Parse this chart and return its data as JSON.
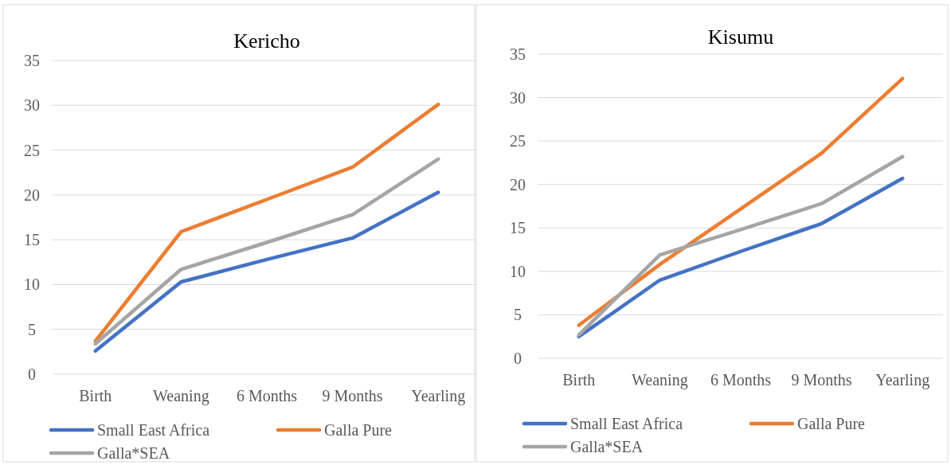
{
  "chart_data": [
    {
      "type": "line",
      "title": "Kericho",
      "categories": [
        "Birth",
        "Weaning",
        "6 Months",
        "9 Months",
        "Yearling"
      ],
      "ylim": [
        0,
        35
      ],
      "yticks": [
        0,
        5,
        10,
        15,
        20,
        25,
        30,
        35
      ],
      "grid": "y",
      "legend": "bottom",
      "series": [
        {
          "name": "Small East Africa",
          "color": "#4472c4",
          "values": [
            2.6,
            10.3,
            12.8,
            15.2,
            20.3
          ]
        },
        {
          "name": "Galla Pure",
          "color": "#ed7d31",
          "values": [
            3.7,
            15.9,
            19.5,
            23.1,
            30.1
          ]
        },
        {
          "name": "Galla*SEA",
          "color": "#a5a5a5",
          "values": [
            3.4,
            11.7,
            14.7,
            17.8,
            24.0
          ]
        }
      ]
    },
    {
      "type": "line",
      "title": "Kisumu",
      "categories": [
        "Birth",
        "Weaning",
        "6 Months",
        "9 Months",
        "Yearling"
      ],
      "ylim": [
        0,
        35
      ],
      "yticks": [
        0,
        5,
        10,
        15,
        20,
        25,
        30,
        35
      ],
      "grid": "y",
      "legend": "bottom",
      "series": [
        {
          "name": "Small East Africa",
          "color": "#4472c4",
          "values": [
            2.5,
            9.0,
            12.3,
            15.5,
            20.7
          ]
        },
        {
          "name": "Galla Pure",
          "color": "#ed7d31",
          "values": [
            3.8,
            10.8,
            17.2,
            23.6,
            32.2
          ]
        },
        {
          "name": "Galla*SEA",
          "color": "#a5a5a5",
          "values": [
            2.7,
            11.9,
            14.8,
            17.8,
            23.2
          ]
        }
      ]
    }
  ]
}
